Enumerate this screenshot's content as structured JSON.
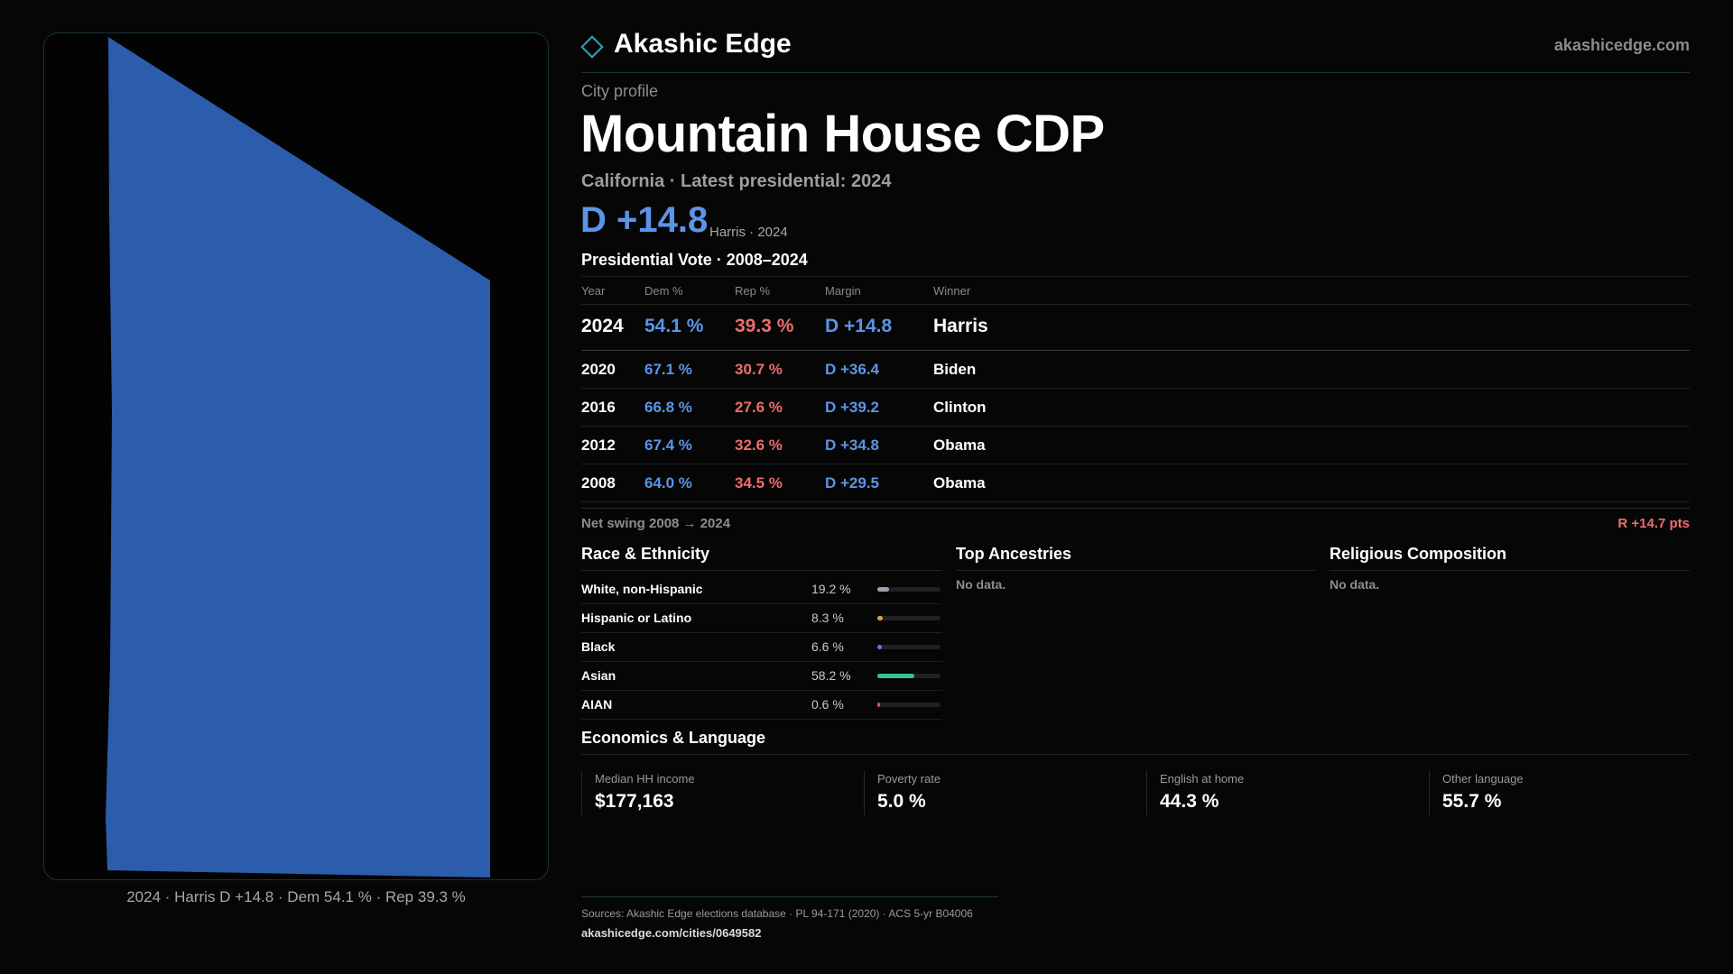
{
  "brand": {
    "name": "Akashic Edge",
    "site": "akashicedge.com"
  },
  "profile": {
    "kicker": "City profile",
    "title": "Mountain House CDP",
    "subtitle": "California · Latest presidential: 2024",
    "margin": "D +14.8",
    "margin_note": "Harris · 2024"
  },
  "map": {
    "fill_color": "#2c5dac",
    "caption": "2024 · Harris D +14.8 · Dem 54.1 % · Rep 39.3 %"
  },
  "vote": {
    "title": "Presidential Vote · 2008–2024",
    "headers": {
      "year": "Year",
      "dem": "Dem %",
      "rep": "Rep %",
      "margin": "Margin",
      "winner": "Winner"
    },
    "rows": [
      {
        "year": "2024",
        "dem": "54.1 %",
        "rep": "39.3 %",
        "margin": "D +14.8",
        "winner": "Harris"
      },
      {
        "year": "2020",
        "dem": "67.1 %",
        "rep": "30.7 %",
        "margin": "D +36.4",
        "winner": "Biden"
      },
      {
        "year": "2016",
        "dem": "66.8 %",
        "rep": "27.6 %",
        "margin": "D +39.2",
        "winner": "Clinton"
      },
      {
        "year": "2012",
        "dem": "67.4 %",
        "rep": "32.6 %",
        "margin": "D +34.8",
        "winner": "Obama"
      },
      {
        "year": "2008",
        "dem": "64.0 %",
        "rep": "34.5 %",
        "margin": "D +29.5",
        "winner": "Obama"
      }
    ],
    "swing_label": "Net swing 2008 → 2024",
    "swing_value": "R +14.7 pts"
  },
  "race": {
    "title": "Race & Ethnicity",
    "rows": [
      {
        "label": "White, non-Hispanic",
        "pct": "19.2 %",
        "fraction": 0.192,
        "color": "#9aa3ad"
      },
      {
        "label": "Hispanic or Latino",
        "pct": "8.3 %",
        "fraction": 0.083,
        "color": "#e0a03a"
      },
      {
        "label": "Black",
        "pct": "6.6 %",
        "fraction": 0.066,
        "color": "#7a6be0"
      },
      {
        "label": "Asian",
        "pct": "58.2 %",
        "fraction": 0.582,
        "color": "#35c48c"
      },
      {
        "label": "AIAN",
        "pct": "0.6 %",
        "fraction": 0.006,
        "color": "#c45a5a"
      }
    ]
  },
  "ancestries": {
    "title": "Top Ancestries",
    "empty": "No data."
  },
  "religion": {
    "title": "Religious Composition",
    "empty": "No data."
  },
  "econ": {
    "title": "Economics & Language",
    "items": [
      {
        "label": "Median HH income",
        "value": "$177,163"
      },
      {
        "label": "Poverty rate",
        "value": "5.0 %"
      },
      {
        "label": "English at home",
        "value": "44.3 %"
      },
      {
        "label": "Other language",
        "value": "55.7 %"
      }
    ]
  },
  "footer": {
    "sources": "Sources: Akashic Edge elections database · PL 94-171 (2020) · ACS 5-yr B04006",
    "url": "akashicedge.com/cities/0649582"
  }
}
